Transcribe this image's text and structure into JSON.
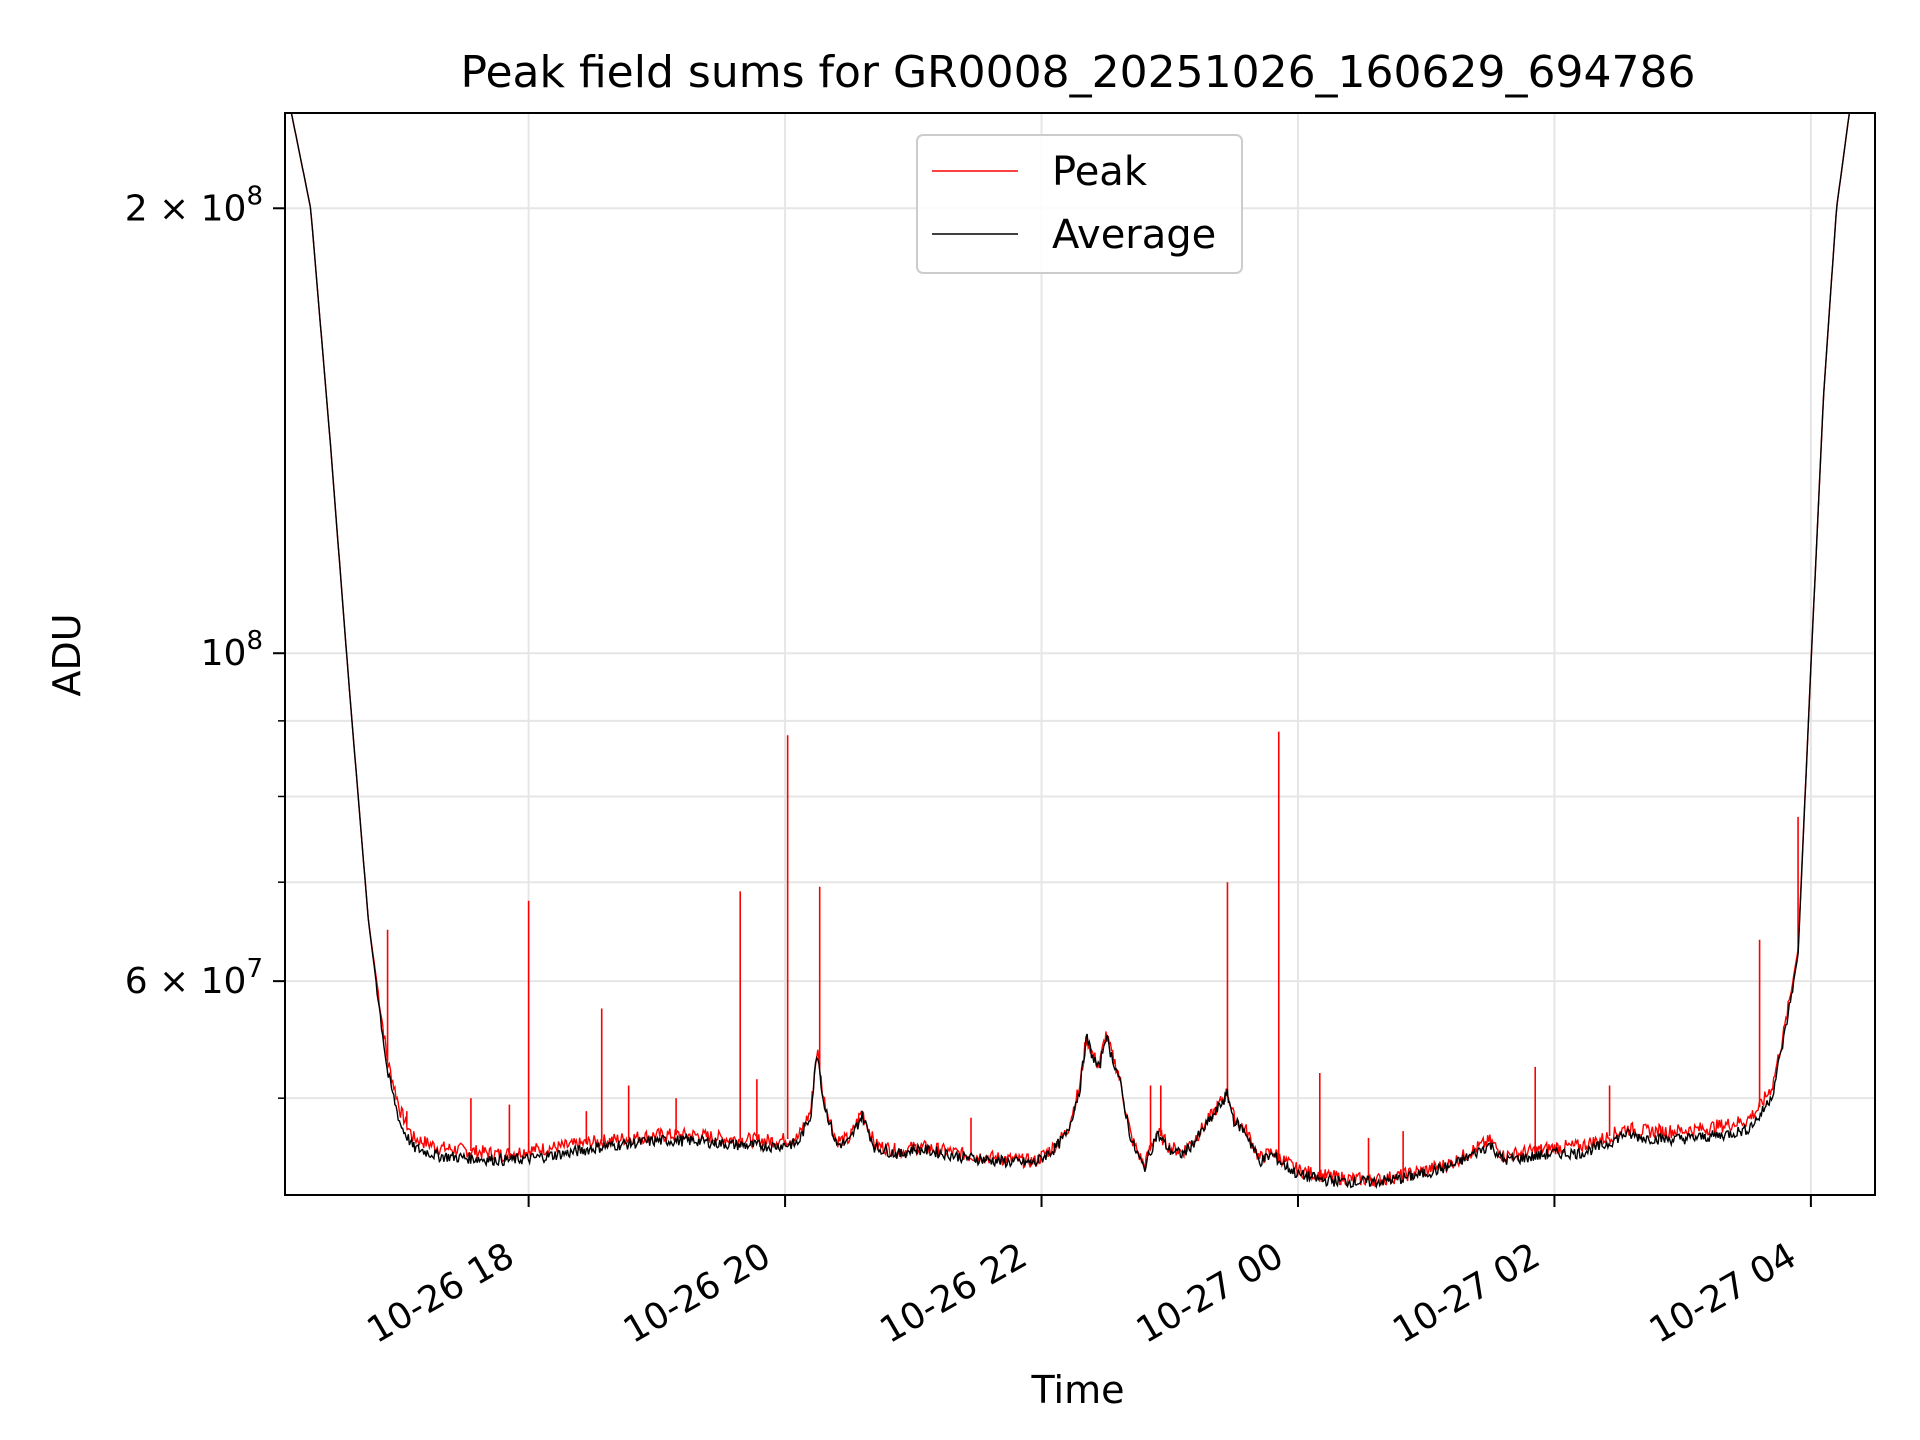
{
  "chart_data": {
    "type": "line",
    "title": "Peak field sums for GR0008_20251026_160629_694786",
    "xlabel": "Time",
    "ylabel": "ADU",
    "y_scale": "log",
    "ylim": [
      43000000,
      232000000
    ],
    "xlim_hours": [
      16.1,
      4.5
    ],
    "grid": true,
    "legend_position": "upper-center",
    "x_ticks": [
      {
        "hour": 18,
        "label": "10-26 18"
      },
      {
        "hour": 20,
        "label": "10-26 20"
      },
      {
        "hour": 22,
        "label": "10-26 22"
      },
      {
        "hour": 24,
        "label": "10-27 00"
      },
      {
        "hour": 26,
        "label": "10-27 02"
      },
      {
        "hour": 28,
        "label": "10-27 04"
      }
    ],
    "y_major_ticks": [
      {
        "value": 200000000,
        "mant": "2",
        "exp": "8"
      },
      {
        "value": 100000000,
        "mant": "",
        "exp": "8"
      },
      {
        "value": 60000000,
        "mant": "6",
        "exp": "7"
      }
    ],
    "y_minor_gridlines": [
      50000000,
      70000000,
      80000000,
      90000000
    ],
    "series": [
      {
        "name": "Peak",
        "color": "#ff0000",
        "points": [
          [
            16.15,
            232000000
          ],
          [
            16.3,
            200000000
          ],
          [
            16.45,
            140000000
          ],
          [
            16.6,
            95000000
          ],
          [
            16.75,
            66000000
          ],
          [
            16.9,
            53000000
          ],
          [
            17.0,
            49000000
          ],
          [
            17.1,
            47000000
          ],
          [
            17.3,
            46300000
          ],
          [
            17.6,
            46000000
          ],
          [
            17.8,
            45800000
          ],
          [
            18.0,
            46100000
          ],
          [
            18.3,
            46400000
          ],
          [
            18.6,
            46800000
          ],
          [
            19.0,
            47200000
          ],
          [
            19.3,
            47200000
          ],
          [
            19.6,
            46900000
          ],
          [
            19.9,
            46800000
          ],
          [
            20.1,
            47000000
          ],
          [
            20.2,
            49000000
          ],
          [
            20.25,
            54000000
          ],
          [
            20.3,
            50000000
          ],
          [
            20.4,
            46800000
          ],
          [
            20.5,
            46900000
          ],
          [
            20.6,
            49000000
          ],
          [
            20.7,
            46500000
          ],
          [
            20.9,
            46000000
          ],
          [
            21.0,
            46300000
          ],
          [
            21.1,
            46300000
          ],
          [
            21.4,
            45800000
          ],
          [
            21.7,
            45500000
          ],
          [
            21.95,
            45300000
          ],
          [
            22.1,
            46400000
          ],
          [
            22.2,
            47500000
          ],
          [
            22.3,
            51000000
          ],
          [
            22.35,
            55000000
          ],
          [
            22.4,
            53500000
          ],
          [
            22.45,
            52500000
          ],
          [
            22.5,
            55300000
          ],
          [
            22.55,
            53500000
          ],
          [
            22.6,
            52000000
          ],
          [
            22.7,
            47000000
          ],
          [
            22.8,
            45000000
          ],
          [
            22.9,
            47500000
          ],
          [
            23.0,
            46300000
          ],
          [
            23.1,
            46000000
          ],
          [
            23.2,
            47000000
          ],
          [
            23.35,
            49000000
          ],
          [
            23.45,
            50500000
          ],
          [
            23.5,
            48500000
          ],
          [
            23.6,
            47500000
          ],
          [
            23.7,
            45500000
          ],
          [
            23.8,
            46000000
          ],
          [
            23.9,
            45300000
          ],
          [
            24.0,
            44700000
          ],
          [
            24.2,
            44300000
          ],
          [
            24.4,
            44100000
          ],
          [
            24.6,
            44000000
          ],
          [
            24.8,
            44300000
          ],
          [
            25.0,
            44700000
          ],
          [
            25.2,
            45200000
          ],
          [
            25.4,
            46300000
          ],
          [
            25.5,
            46800000
          ],
          [
            25.6,
            45700000
          ],
          [
            25.8,
            46000000
          ],
          [
            26.0,
            46300000
          ],
          [
            26.2,
            46400000
          ],
          [
            26.4,
            47000000
          ],
          [
            26.55,
            47700000
          ],
          [
            26.7,
            47500000
          ],
          [
            26.9,
            47500000
          ],
          [
            27.1,
            47600000
          ],
          [
            27.3,
            47900000
          ],
          [
            27.5,
            48300000
          ],
          [
            27.6,
            49300000
          ],
          [
            27.7,
            51000000
          ],
          [
            27.8,
            56000000
          ],
          [
            27.9,
            63000000
          ],
          [
            28.0,
            98000000
          ],
          [
            28.1,
            150000000
          ],
          [
            28.2,
            200000000
          ],
          [
            28.3,
            232000000
          ]
        ]
      },
      {
        "name": "Average",
        "color": "#000000",
        "points": [
          [
            16.15,
            232000000
          ],
          [
            16.3,
            200000000
          ],
          [
            16.45,
            140000000
          ],
          [
            16.6,
            95000000
          ],
          [
            16.75,
            66000000
          ],
          [
            16.9,
            52000000
          ],
          [
            17.0,
            48000000
          ],
          [
            17.1,
            46300000
          ],
          [
            17.3,
            45700000
          ],
          [
            17.6,
            45500000
          ],
          [
            17.8,
            45400000
          ],
          [
            18.0,
            45500000
          ],
          [
            18.3,
            45900000
          ],
          [
            18.6,
            46400000
          ],
          [
            19.0,
            46800000
          ],
          [
            19.3,
            46800000
          ],
          [
            19.6,
            46500000
          ],
          [
            19.9,
            46400000
          ],
          [
            20.1,
            46600000
          ],
          [
            20.2,
            48700000
          ],
          [
            20.25,
            54000000
          ],
          [
            20.3,
            49700000
          ],
          [
            20.4,
            46500000
          ],
          [
            20.5,
            46700000
          ],
          [
            20.6,
            48700000
          ],
          [
            20.7,
            46300000
          ],
          [
            20.9,
            45800000
          ],
          [
            21.0,
            46200000
          ],
          [
            21.1,
            46100000
          ],
          [
            21.4,
            45600000
          ],
          [
            21.7,
            45300000
          ],
          [
            21.95,
            45200000
          ],
          [
            22.1,
            46200000
          ],
          [
            22.2,
            47300000
          ],
          [
            22.3,
            50800000
          ],
          [
            22.35,
            55000000
          ],
          [
            22.4,
            53300000
          ],
          [
            22.45,
            52300000
          ],
          [
            22.5,
            55200000
          ],
          [
            22.55,
            53300000
          ],
          [
            22.6,
            51800000
          ],
          [
            22.7,
            46800000
          ],
          [
            22.8,
            44800000
          ],
          [
            22.9,
            47300000
          ],
          [
            23.0,
            46100000
          ],
          [
            23.1,
            45800000
          ],
          [
            23.2,
            46800000
          ],
          [
            23.35,
            48800000
          ],
          [
            23.45,
            50300000
          ],
          [
            23.5,
            48300000
          ],
          [
            23.6,
            47300000
          ],
          [
            23.7,
            45300000
          ],
          [
            23.8,
            45800000
          ],
          [
            23.9,
            45000000
          ],
          [
            24.0,
            44400000
          ],
          [
            24.2,
            44000000
          ],
          [
            24.4,
            43900000
          ],
          [
            24.6,
            43900000
          ],
          [
            24.8,
            44100000
          ],
          [
            25.0,
            44500000
          ],
          [
            25.2,
            45000000
          ],
          [
            25.4,
            46000000
          ],
          [
            25.5,
            46500000
          ],
          [
            25.6,
            45400000
          ],
          [
            25.8,
            45600000
          ],
          [
            26.0,
            45900000
          ],
          [
            26.2,
            45900000
          ],
          [
            26.4,
            46500000
          ],
          [
            26.55,
            47300000
          ],
          [
            26.7,
            47000000
          ],
          [
            26.9,
            46900000
          ],
          [
            27.1,
            47000000
          ],
          [
            27.3,
            47200000
          ],
          [
            27.5,
            47600000
          ],
          [
            27.6,
            48600000
          ],
          [
            27.7,
            50300000
          ],
          [
            27.8,
            55500000
          ],
          [
            27.9,
            62500000
          ],
          [
            28.0,
            98000000
          ],
          [
            28.1,
            150000000
          ],
          [
            28.2,
            200000000
          ],
          [
            28.3,
            232000000
          ]
        ]
      }
    ],
    "peak_spikes": [
      [
        16.9,
        65000000
      ],
      [
        17.05,
        49000000
      ],
      [
        17.55,
        50000000
      ],
      [
        17.85,
        49500000
      ],
      [
        18.0,
        68000000
      ],
      [
        18.45,
        49000000
      ],
      [
        18.57,
        57500000
      ],
      [
        18.78,
        51000000
      ],
      [
        19.15,
        50000000
      ],
      [
        19.65,
        69000000
      ],
      [
        19.78,
        51500000
      ],
      [
        20.02,
        88000000
      ],
      [
        20.27,
        69500000
      ],
      [
        21.45,
        48500000
      ],
      [
        22.85,
        51000000
      ],
      [
        22.93,
        51000000
      ],
      [
        23.45,
        70000000
      ],
      [
        23.85,
        88500000
      ],
      [
        24.17,
        52000000
      ],
      [
        24.55,
        47000000
      ],
      [
        24.82,
        47500000
      ],
      [
        25.85,
        52500000
      ],
      [
        26.43,
        51000000
      ],
      [
        27.6,
        64000000
      ],
      [
        27.9,
        77500000
      ]
    ]
  },
  "legend": {
    "peak_label": "Peak",
    "average_label": "Average"
  }
}
